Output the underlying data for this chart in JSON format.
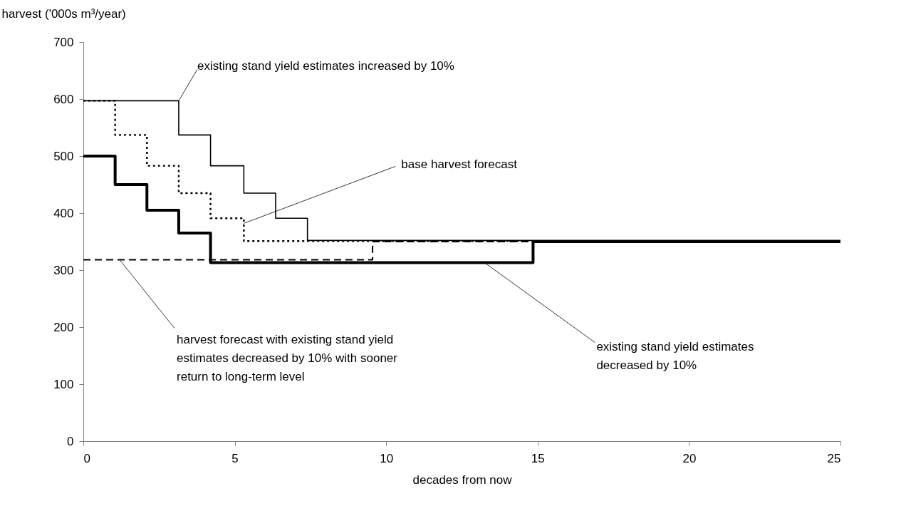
{
  "chart_data": {
    "type": "step",
    "xlabel": "decades from now",
    "ylabel": "harvest ('000s m³/year)",
    "xlim": [
      0,
      25
    ],
    "xticks": [
      0,
      5,
      10,
      15,
      20,
      25
    ],
    "ylim": [
      0,
      700
    ],
    "yticks": [
      0,
      100,
      200,
      300,
      400,
      500,
      600,
      700
    ],
    "grid": false,
    "series": [
      {
        "color": "#000000",
        "line_style": "solid",
        "x": [
          0,
          3.15,
          4.2,
          5.3,
          6.35,
          7.4,
          25
        ],
        "values": [
          597,
          537,
          483,
          435,
          391,
          352,
          352
        ]
      },
      {
        "color": "#000000",
        "line_style": "dotted",
        "x": [
          0,
          1.05,
          2.1,
          3.15,
          4.2,
          5.3,
          25
        ],
        "values": [
          597,
          537,
          483,
          435,
          391,
          351,
          351
        ]
      },
      {
        "color": "#000000",
        "line_style": "solid",
        "x": [
          0,
          1.05,
          2.1,
          3.15,
          4.2,
          14.85,
          25
        ],
        "values": [
          500,
          450,
          405,
          365,
          313,
          350,
          350
        ]
      },
      {
        "color": "#000000",
        "line_style": "dashed",
        "x": [
          0,
          9.55,
          25
        ],
        "values": [
          318,
          350,
          350
        ]
      }
    ],
    "annotations": [
      {
        "text": "existing stand yield estimates increased by 10%",
        "x": 3.15,
        "y": 597
      },
      {
        "text": "base harvest forecast",
        "x": 5.3,
        "y": 382
      },
      {
        "text": "existing stand yield estimates decreased by 10%",
        "x": 13.25,
        "y": 313
      },
      {
        "text": "harvest forecast with existing stand yield estimates decreased by 10% with sooner return to long-term level",
        "x": 1.2,
        "y": 318
      }
    ]
  }
}
